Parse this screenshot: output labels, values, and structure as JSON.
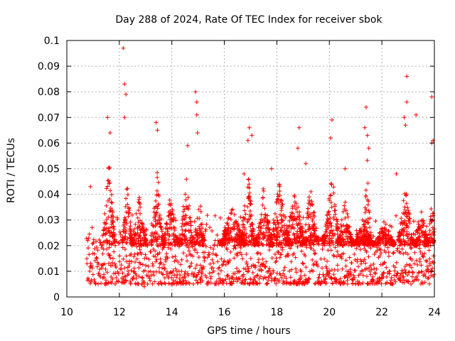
{
  "chart_data": {
    "type": "scatter",
    "title": "Day 288 of 2024, Rate Of TEC Index for receiver sbok",
    "xlabel": "GPS time / hours",
    "ylabel": "ROTI / TECUs",
    "xlim": [
      10,
      24
    ],
    "ylim": [
      0,
      0.1
    ],
    "xticks": [
      10,
      12,
      14,
      16,
      18,
      20,
      22,
      24
    ],
    "xtick_labels": [
      "10",
      "12",
      "14",
      "16",
      "18",
      "20",
      "22",
      "24"
    ],
    "yticks": [
      0,
      0.01,
      0.02,
      0.03,
      0.04,
      0.05,
      0.06,
      0.07,
      0.08,
      0.09,
      0.1
    ],
    "ytick_labels": [
      "0",
      "0.01",
      "0.02",
      "0.03",
      "0.04",
      "0.05",
      "0.06",
      "0.07",
      "0.08",
      "0.09",
      "0.1"
    ],
    "grid": true,
    "marker": "+",
    "color": "#ff0000",
    "data_start_hour": 10.75,
    "baseline_range": [
      0.005,
      0.02
    ],
    "spikes": [
      {
        "x": 10.9,
        "y": 0.043
      },
      {
        "x": 11.55,
        "y": 0.07
      },
      {
        "x": 11.65,
        "y": 0.064
      },
      {
        "x": 12.15,
        "y": 0.097
      },
      {
        "x": 12.2,
        "y": 0.083
      },
      {
        "x": 12.25,
        "y": 0.079
      },
      {
        "x": 12.2,
        "y": 0.07
      },
      {
        "x": 13.4,
        "y": 0.068
      },
      {
        "x": 13.45,
        "y": 0.065
      },
      {
        "x": 14.6,
        "y": 0.059
      },
      {
        "x": 14.9,
        "y": 0.08
      },
      {
        "x": 14.95,
        "y": 0.076
      },
      {
        "x": 14.95,
        "y": 0.071
      },
      {
        "x": 14.98,
        "y": 0.064
      },
      {
        "x": 16.95,
        "y": 0.066
      },
      {
        "x": 16.9,
        "y": 0.061
      },
      {
        "x": 17.05,
        "y": 0.063
      },
      {
        "x": 18.8,
        "y": 0.058
      },
      {
        "x": 18.85,
        "y": 0.066
      },
      {
        "x": 20.1,
        "y": 0.069
      },
      {
        "x": 20.05,
        "y": 0.062
      },
      {
        "x": 21.4,
        "y": 0.074
      },
      {
        "x": 21.35,
        "y": 0.066
      },
      {
        "x": 21.45,
        "y": 0.063
      },
      {
        "x": 21.5,
        "y": 0.058
      },
      {
        "x": 22.95,
        "y": 0.086
      },
      {
        "x": 22.95,
        "y": 0.076
      },
      {
        "x": 22.85,
        "y": 0.07
      },
      {
        "x": 22.9,
        "y": 0.067
      },
      {
        "x": 23.3,
        "y": 0.071
      },
      {
        "x": 23.9,
        "y": 0.078
      },
      {
        "x": 23.95,
        "y": 0.061
      },
      {
        "x": 23.9,
        "y": 0.06
      },
      {
        "x": 16.75,
        "y": 0.048
      },
      {
        "x": 17.8,
        "y": 0.05
      },
      {
        "x": 19.1,
        "y": 0.052
      },
      {
        "x": 20.6,
        "y": 0.05
      },
      {
        "x": 22.55,
        "y": 0.048
      },
      {
        "x": 14.15,
        "y": 0.006
      },
      {
        "x": 12.95,
        "y": 0.004
      }
    ],
    "bursts": [
      {
        "center": 11.6,
        "peak": 0.055,
        "width": 0.25
      },
      {
        "center": 12.3,
        "peak": 0.045,
        "width": 0.2
      },
      {
        "center": 12.75,
        "peak": 0.04,
        "width": 0.3
      },
      {
        "center": 13.45,
        "peak": 0.05,
        "width": 0.25
      },
      {
        "center": 13.95,
        "peak": 0.04,
        "width": 0.3
      },
      {
        "center": 14.55,
        "peak": 0.048,
        "width": 0.25
      },
      {
        "center": 15.05,
        "peak": 0.04,
        "width": 0.2
      },
      {
        "center": 16.3,
        "peak": 0.035,
        "width": 0.5
      },
      {
        "center": 16.9,
        "peak": 0.048,
        "width": 0.3
      },
      {
        "center": 17.5,
        "peak": 0.045,
        "width": 0.3
      },
      {
        "center": 18.1,
        "peak": 0.045,
        "width": 0.4
      },
      {
        "center": 18.7,
        "peak": 0.042,
        "width": 0.4
      },
      {
        "center": 19.3,
        "peak": 0.045,
        "width": 0.3
      },
      {
        "center": 20.1,
        "peak": 0.048,
        "width": 0.35
      },
      {
        "center": 20.6,
        "peak": 0.038,
        "width": 0.3
      },
      {
        "center": 21.3,
        "peak": 0.03,
        "width": 0.4
      },
      {
        "center": 21.45,
        "peak": 0.055,
        "width": 0.15
      },
      {
        "center": 22.1,
        "peak": 0.03,
        "width": 0.4
      },
      {
        "center": 22.9,
        "peak": 0.045,
        "width": 0.3
      },
      {
        "center": 23.5,
        "peak": 0.035,
        "width": 0.3
      },
      {
        "center": 23.9,
        "peak": 0.04,
        "width": 0.15
      }
    ]
  }
}
